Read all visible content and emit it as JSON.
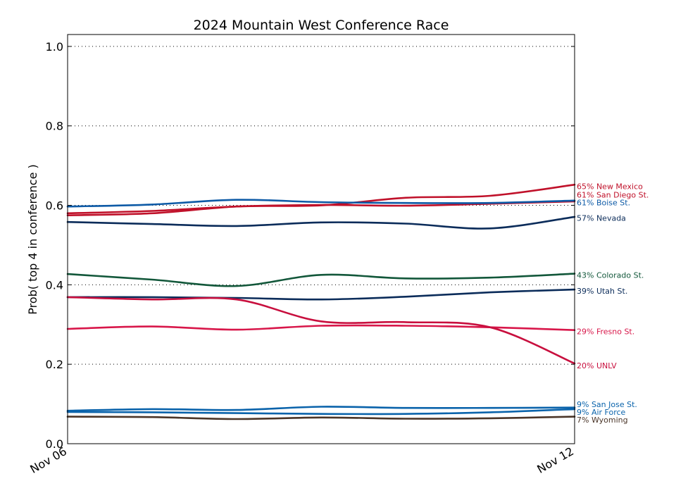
{
  "chart_data": {
    "type": "line",
    "title": "2024 Mountain West Conference Race",
    "ylabel": "Prob( top 4 in conference )",
    "xlabel": "",
    "x": [
      "Nov 06",
      "",
      "",
      "",
      "",
      "",
      "Nov 12"
    ],
    "x_tick_labels": [
      "Nov 06",
      "Nov 12"
    ],
    "ylim": [
      0,
      1.03
    ],
    "y_ticks": [
      0.0,
      0.2,
      0.4,
      0.6,
      0.8,
      1.0
    ],
    "y_tick_labels": [
      "0.0",
      "0.2",
      "0.4",
      "0.6",
      "0.8",
      "1.0"
    ],
    "grid": "horizontal dotted",
    "series": [
      {
        "name": "New Mexico",
        "label": "65% New Mexico",
        "color": "#c0112a",
        "values": [
          0.575,
          0.58,
          0.597,
          0.6,
          0.619,
          0.624,
          0.652
        ]
      },
      {
        "name": "San Diego St.",
        "label": "61% San Diego St.",
        "color": "#c0112a",
        "values": [
          0.58,
          0.586,
          0.597,
          0.601,
          0.599,
          0.604,
          0.61
        ]
      },
      {
        "name": "Boise St.",
        "label": "61% Boise St.",
        "color": "#0d5aa6",
        "values": [
          0.597,
          0.602,
          0.614,
          0.608,
          0.606,
          0.606,
          0.612
        ]
      },
      {
        "name": "Nevada",
        "label": "57% Nevada",
        "color": "#0b2c5a",
        "values": [
          0.558,
          0.553,
          0.548,
          0.557,
          0.554,
          0.542,
          0.571
        ]
      },
      {
        "name": "Colorado St.",
        "label": "43% Colorado St.",
        "color": "#12573a",
        "values": [
          0.427,
          0.413,
          0.397,
          0.425,
          0.416,
          0.418,
          0.428
        ]
      },
      {
        "name": "Utah St.",
        "label": "39% Utah St.",
        "color": "#0b2c5a",
        "values": [
          0.369,
          0.369,
          0.367,
          0.363,
          0.37,
          0.381,
          0.388
        ]
      },
      {
        "name": "Fresno St.",
        "label": "29% Fresno St.",
        "color": "#d8174a",
        "values": [
          0.289,
          0.295,
          0.287,
          0.297,
          0.297,
          0.293,
          0.286
        ]
      },
      {
        "name": "UNLV",
        "label": "20% UNLV",
        "color": "#c80f3e",
        "values": [
          0.369,
          0.363,
          0.363,
          0.308,
          0.306,
          0.293,
          0.202
        ]
      },
      {
        "name": "San Jose St.",
        "label": "9% San Jose St.",
        "color": "#0a63ab",
        "values": [
          0.083,
          0.087,
          0.085,
          0.093,
          0.09,
          0.09,
          0.091
        ]
      },
      {
        "name": "Air Force",
        "label": "9% Air Force",
        "color": "#0a63ab",
        "values": [
          0.08,
          0.079,
          0.077,
          0.075,
          0.075,
          0.079,
          0.087
        ]
      },
      {
        "name": "Wyoming",
        "label": "7% Wyoming",
        "color": "#4a3528",
        "values": [
          0.068,
          0.067,
          0.062,
          0.066,
          0.063,
          0.064,
          0.068
        ]
      }
    ],
    "end_labels": [
      {
        "text": "65% New Mexico",
        "color": "#c0112a",
        "y": 0.648
      },
      {
        "text": "61% San Diego St.",
        "color": "#c0112a",
        "y": 0.627
      },
      {
        "text": "61% Boise St.",
        "color": "#0d5aa6",
        "y": 0.607
      },
      {
        "text": "57% Nevada",
        "color": "#0b2c5a",
        "y": 0.568
      },
      {
        "text": "43% Colorado St.",
        "color": "#12573a",
        "y": 0.425
      },
      {
        "text": "39% Utah St.",
        "color": "#0b2c5a",
        "y": 0.385
      },
      {
        "text": "29% Fresno St.",
        "color": "#d8174a",
        "y": 0.283
      },
      {
        "text": "20% UNLV",
        "color": "#c80f3e",
        "y": 0.197
      },
      {
        "text": "9% San Jose St.",
        "color": "#0a63ab",
        "y": 0.099
      },
      {
        "text": "9% Air Force",
        "color": "#0a63ab",
        "y": 0.08
      },
      {
        "text": "7% Wyoming",
        "color": "#4a3528",
        "y": 0.06
      }
    ]
  }
}
